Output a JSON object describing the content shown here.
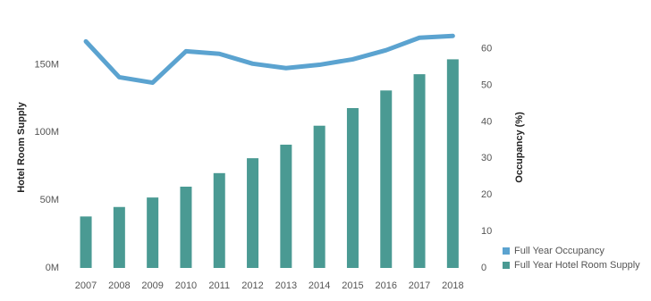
{
  "chart_data": {
    "type": "bar-line",
    "y_label": "Hotel Room Supply",
    "y2_label": "Occupancy (%)",
    "categories": [
      "2007",
      "2008",
      "2009",
      "2010",
      "2011",
      "2012",
      "2013",
      "2014",
      "2015",
      "2016",
      "2017",
      "2018"
    ],
    "series": [
      {
        "name": "Full Year Occupancy",
        "type": "line",
        "axis": "y2",
        "color": "#5ba3d0",
        "values": [
          62,
          52.2,
          50.7,
          59.3,
          58.6,
          55.9,
          54.7,
          55.6,
          57.1,
          59.6,
          63,
          63.5
        ]
      },
      {
        "name": "Full Year Hotel Room Supply",
        "type": "bar",
        "color": "#4a9a93",
        "values": [
          38000000,
          45000000,
          52000000,
          60000000,
          70000000,
          81000000,
          91000000,
          105000000,
          118000000,
          131000000,
          143000000,
          154000000
        ]
      }
    ],
    "ylim": [
      0,
      178000000
    ],
    "yticks": [
      {
        "value": 0,
        "label": "0M"
      },
      {
        "value": 50000000,
        "label": "50M"
      },
      {
        "value": 100000000,
        "label": "100M"
      },
      {
        "value": 150000000,
        "label": "150M"
      }
    ],
    "y2lim": [
      0,
      66
    ],
    "y2ticks": [
      0,
      10,
      20,
      30,
      40,
      50,
      60
    ],
    "legend": "bottom-right"
  }
}
